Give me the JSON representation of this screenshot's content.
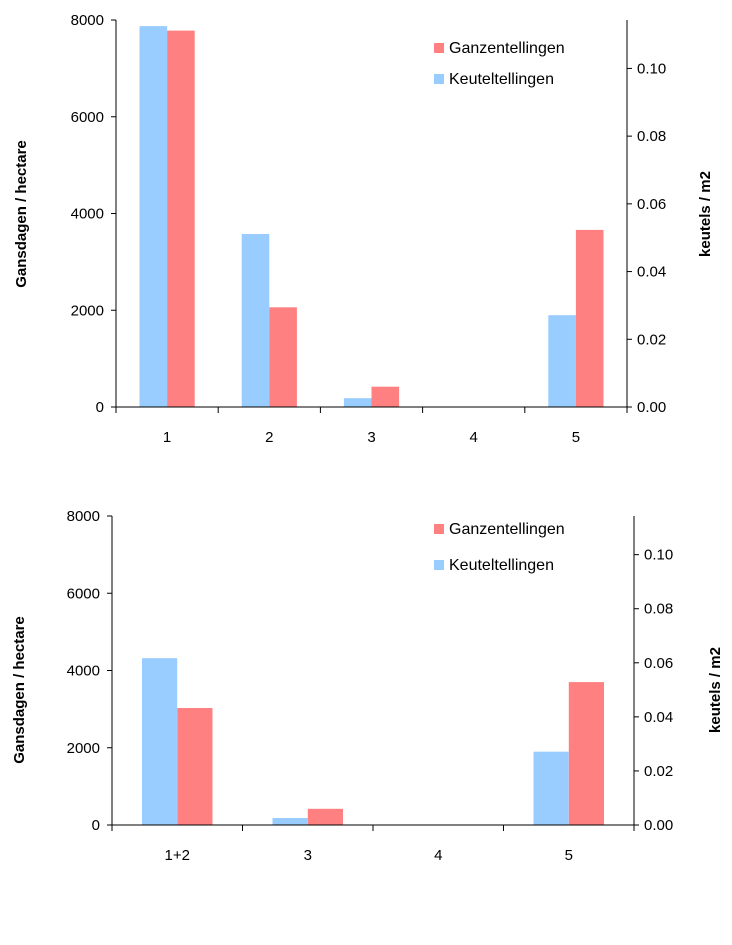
{
  "colors": {
    "ganzentellingen": "#ff8080",
    "keuteltellingen": "#99ccff",
    "axis": "#000000"
  },
  "chart_data": [
    {
      "type": "bar",
      "categories": [
        "1",
        "2",
        "3",
        "4",
        "5"
      ],
      "series": [
        {
          "name": "Keuteltellingen",
          "axis": "right",
          "values": [
            0.1125,
            0.0511,
            0.0026,
            0,
            0.0271
          ]
        },
        {
          "name": "Ganzentellingen",
          "axis": "left",
          "values": [
            7780,
            2060,
            420,
            0,
            3660
          ]
        }
      ],
      "ylabel": "Gansdagen / hectare",
      "ylim": [
        0,
        8000
      ],
      "yticks": [
        "0",
        "2000",
        "4000",
        "6000",
        "8000"
      ],
      "y2label": "keutels / m2",
      "y2lim": [
        0,
        0.1143
      ],
      "y2ticks": [
        "0.00",
        "0.02",
        "0.04",
        "0.06",
        "0.08",
        "0.10"
      ],
      "legend": "top-right",
      "grid": false
    },
    {
      "type": "bar",
      "categories": [
        "1+2",
        "3",
        "4",
        "5"
      ],
      "series": [
        {
          "name": "Keuteltellingen",
          "axis": "right",
          "values": [
            0.0617,
            0.0026,
            0,
            0.0271
          ]
        },
        {
          "name": "Ganzentellingen",
          "axis": "left",
          "values": [
            3030,
            420,
            0,
            3700
          ]
        }
      ],
      "ylabel": "Gansdagen / hectare",
      "ylim": [
        0,
        8000
      ],
      "yticks": [
        "0",
        "2000",
        "4000",
        "6000",
        "8000"
      ],
      "y2label": "keutels / m2",
      "y2lim": [
        0,
        0.1143
      ],
      "y2ticks": [
        "0.00",
        "0.02",
        "0.04",
        "0.06",
        "0.08",
        "0.10"
      ],
      "legend": "top-right",
      "grid": false
    }
  ]
}
